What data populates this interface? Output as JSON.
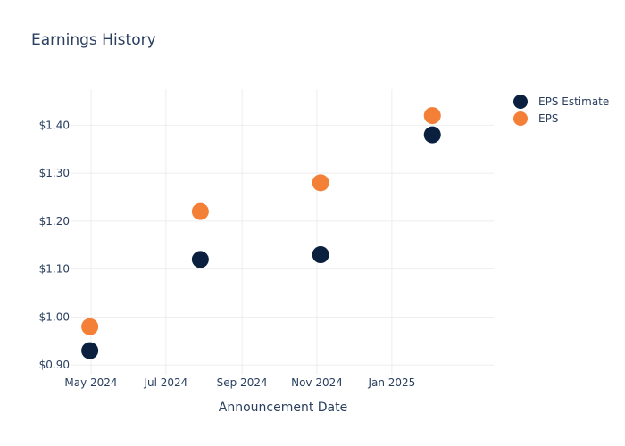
{
  "chart_data": {
    "type": "scatter",
    "title": "Earnings History",
    "xlabel": "Announcement Date",
    "ylabel": "",
    "x_ticks": [
      "2024-05-01",
      "2024-07-01",
      "2024-09-01",
      "2024-11-01",
      "2025-01-01"
    ],
    "x_tick_labels": [
      "May 2024",
      "Jul 2024",
      "Sep 2024",
      "Nov 2024",
      "Jan 2025"
    ],
    "xlim": [
      "2024-04-15",
      "2025-03-25"
    ],
    "y_ticks": [
      0.9,
      1.0,
      1.1,
      1.2,
      1.3,
      1.4
    ],
    "y_tick_labels": [
      "$0.90",
      "$1.00",
      "$1.10",
      "$1.20",
      "$1.30",
      "$1.40"
    ],
    "ylim": [
      0.88,
      1.475
    ],
    "grid": true,
    "legend": "right",
    "series": [
      {
        "name": "EPS Estimate",
        "color": "#0b1f3f",
        "points": [
          {
            "x": "2024-04-30",
            "y": 0.93
          },
          {
            "x": "2024-07-29",
            "y": 1.12
          },
          {
            "x": "2024-11-04",
            "y": 1.13
          },
          {
            "x": "2025-02-03",
            "y": 1.38
          }
        ]
      },
      {
        "name": "EPS",
        "color": "#f47f36",
        "points": [
          {
            "x": "2024-04-30",
            "y": 0.98
          },
          {
            "x": "2024-07-29",
            "y": 1.22
          },
          {
            "x": "2024-11-04",
            "y": 1.28
          },
          {
            "x": "2025-02-03",
            "y": 1.42
          }
        ]
      }
    ]
  }
}
